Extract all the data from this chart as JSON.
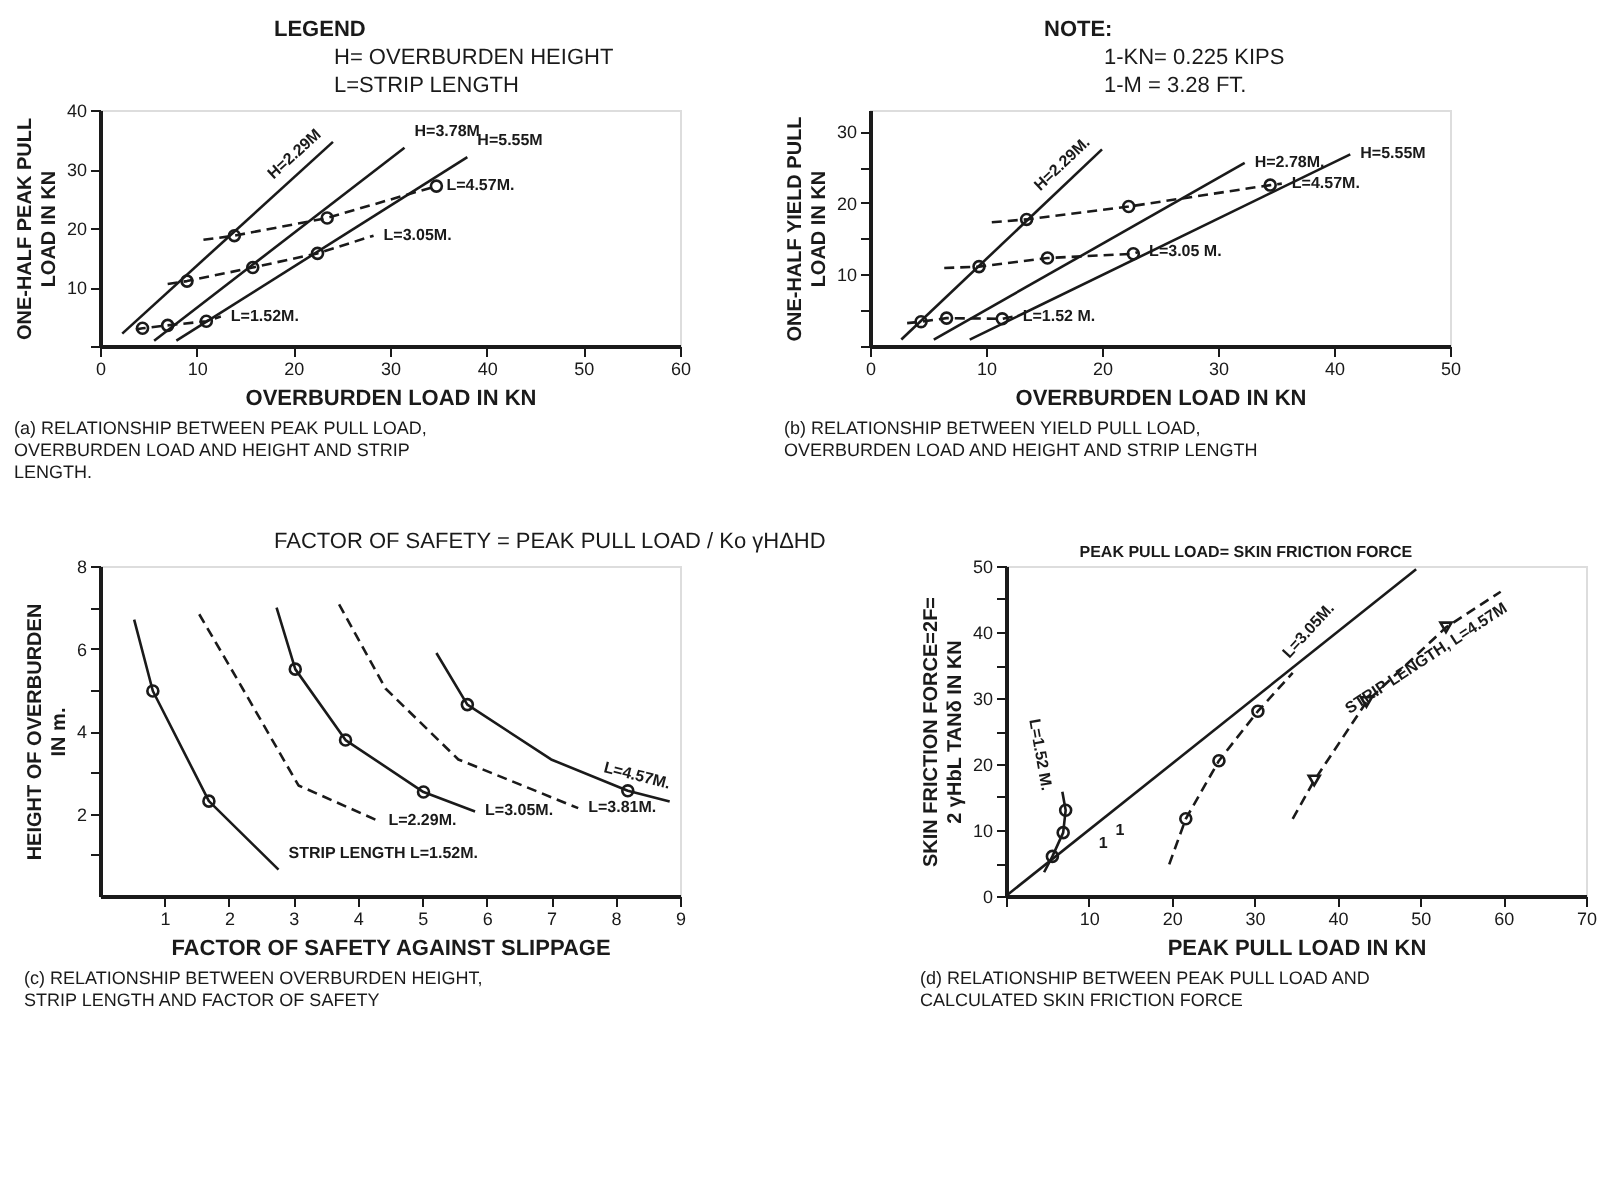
{
  "chart_data": [
    {
      "type": "line",
      "title": "(a) RELATIONSHIP BETWEEN PEAK PULL LOAD,\nOVERBURDEN  LOAD  AND HEIGHT AND STRIP\nLENGTH.",
      "xlabel": "OVERBURDEN LOAD IN KN",
      "ylabel": "ONE-HALF PEAK PULL\nLOAD IN KN",
      "xlim": [
        0,
        60
      ],
      "ylim": [
        0,
        40
      ],
      "xticks": [
        0,
        10,
        20,
        30,
        40,
        50,
        60
      ],
      "yticks": [
        {
          "value": 0,
          "label": null
        },
        10,
        20,
        30,
        40
      ],
      "annotations": [
        "LEGEND",
        "H= OVERBURDEN HEIGHT",
        "L=STRIP LENGTH"
      ],
      "series": [
        {
          "name": "H=2.29M",
          "line_style": "solid",
          "color": "#1a1a1a",
          "x": [
            2.3,
            24.1
          ],
          "values": [
            2.1,
            34.6
          ]
        },
        {
          "name": "H=3.78M",
          "line_style": "solid",
          "color": "#1a1a1a",
          "x": [
            5.6,
            31.5
          ],
          "values": [
            0.9,
            33.6
          ]
        },
        {
          "name": "H=5.55M",
          "line_style": "solid",
          "color": "#1a1a1a",
          "x": [
            7.9,
            38
          ],
          "values": [
            0.9,
            32
          ]
        },
        {
          "name": "L=1.52M.",
          "line_style": "dashed",
          "color": "#1a1a1a",
          "x": [
            3.7,
            4.4,
            7,
            11,
            12.5
          ],
          "values": [
            2.8,
            3,
            3.5,
            4.2,
            5
          ]
        },
        {
          "name": "L=3.05M.",
          "line_style": "dashed",
          "color": "#1a1a1a",
          "x": [
            7,
            9,
            15.8,
            22.5,
            28.3
          ],
          "values": [
            10.5,
            11,
            13.3,
            15.7,
            18.7
          ]
        },
        {
          "name": "L=4.57M.",
          "line_style": "dashed",
          "color": "#1a1a1a",
          "x": [
            10.7,
            13.9,
            23.5,
            34.8
          ],
          "values": [
            18,
            18.7,
            21.7,
            27.1
          ]
        },
        {
          "type": "scatter",
          "marker": "circle",
          "color": "#1a1a1a",
          "x": [
            4.4,
            7,
            11,
            9,
            15.8,
            22.5,
            13.9,
            23.5,
            34.8
          ],
          "values": [
            3,
            3.5,
            4.2,
            11,
            13.3,
            15.7,
            18.7,
            21.7,
            27.1
          ]
        }
      ]
    },
    {
      "type": "line",
      "title": "(b) RELATIONSHIP BETWEEN YIELD PULL LOAD,\nOVERBURDEN  LOAD  AND HEIGHT AND STRIP LENGTH",
      "xlabel": "OVERBURDEN LOAD IN KN",
      "ylabel": "ONE-HALF YIELD PULL\nLOAD IN KN",
      "xlim": [
        0,
        50
      ],
      "ylim": [
        0,
        33
      ],
      "xticks": [
        0,
        10,
        20,
        30,
        40,
        50
      ],
      "yticks": [
        {
          "value": 0,
          "label": null
        },
        {
          "value": 5,
          "label": null
        },
        10,
        {
          "value": 15,
          "label": null
        },
        20,
        {
          "value": 25,
          "label": null
        },
        30
      ],
      "annotations": [
        "NOTE:",
        "1-KN= 0.225  KIPS",
        "1-M = 3.28   FT."
      ],
      "series": [
        {
          "name": "H=2.29M.",
          "line_style": "solid",
          "color": "#1a1a1a",
          "x": [
            2.7,
            20
          ],
          "values": [
            0.9,
            27.5
          ]
        },
        {
          "name": "H=2.78M.",
          "line_style": "solid",
          "color": "#1a1a1a",
          "x": [
            5.5,
            32.3
          ],
          "values": [
            0.9,
            25.6
          ]
        },
        {
          "name": "H=5.55M",
          "line_style": "solid",
          "color": "#1a1a1a",
          "x": [
            8.6,
            41.4
          ],
          "values": [
            0.9,
            26.8
          ]
        },
        {
          "name": "L=1.52 M.",
          "line_style": "dashed",
          "color": "#1a1a1a",
          "x": [
            3.2,
            4.4,
            6.6,
            11.4,
            12.3
          ],
          "values": [
            3.2,
            3.4,
            3.9,
            3.8,
            4.1
          ]
        },
        {
          "name": "L=3.05 M.",
          "line_style": "dashed",
          "color": "#1a1a1a",
          "x": [
            6.4,
            9.4,
            15.3,
            22.7,
            23.2
          ],
          "values": [
            10.9,
            11.1,
            12.3,
            12.9,
            13.2
          ]
        },
        {
          "name": "L=4.57M.",
          "line_style": "dashed",
          "color": "#1a1a1a",
          "x": [
            10.5,
            13.5,
            22.3,
            34.5,
            35.5
          ],
          "values": [
            17.3,
            17.7,
            19.5,
            22.5,
            22.7
          ]
        },
        {
          "type": "scatter",
          "marker": "circle",
          "color": "#1a1a1a",
          "x": [
            4.4,
            6.6,
            11.4,
            9.4,
            15.3,
            22.7,
            13.5,
            22.3,
            34.5
          ],
          "values": [
            3.4,
            3.9,
            3.8,
            11.1,
            12.3,
            12.9,
            17.7,
            19.5,
            22.5
          ]
        }
      ]
    },
    {
      "type": "line",
      "title": "(c) RELATIONSHIP BETWEEN OVERBURDEN HEIGHT,\nSTRIP LENGTH AND FACTOR OF SAFETY",
      "xlabel": "FACTOR OF SAFETY AGAINST SLIPPAGE",
      "ylabel": "HEIGHT OF OVERBURDEN\nIN m.",
      "xlim": [
        0,
        9
      ],
      "ylim": [
        0,
        8
      ],
      "xticks": [
        1,
        2,
        3,
        4,
        5,
        6,
        7,
        8,
        9
      ],
      "yticks": [
        {
          "value": 1,
          "label": null
        },
        2,
        {
          "value": 3,
          "label": null
        },
        4,
        {
          "value": 5,
          "label": null
        },
        6,
        {
          "value": 7,
          "label": null
        },
        8
      ],
      "annotations": [
        "FACTOR OF SAFETY = PEAK PULL LOAD / Ko γHΔHD"
      ],
      "series": [
        {
          "name": "STRIP LENGTH L=1.52M.",
          "line_style": "solid",
          "color": "#1a1a1a",
          "x": [
            0.53,
            0.82,
            1.69,
            2.77
          ],
          "values": [
            6.7,
            4.97,
            2.3,
            0.64
          ]
        },
        {
          "name": "L=2.29M.",
          "line_style": "dashed",
          "color": "#1a1a1a",
          "x": [
            1.54,
            2.15,
            3.08,
            4.32
          ],
          "values": [
            6.83,
            5.2,
            2.68,
            1.82
          ]
        },
        {
          "name": "L=3.05M.",
          "line_style": "solid",
          "color": "#1a1a1a",
          "x": [
            2.74,
            3.03,
            3.81,
            5.02,
            5.82
          ],
          "values": [
            6.99,
            5.5,
            3.78,
            2.52,
            2.05
          ]
        },
        {
          "name": "L=3.81M.",
          "line_style": "dashed",
          "color": "#1a1a1a",
          "x": [
            3.71,
            4.43,
            5.56,
            7.42
          ],
          "values": [
            7.07,
            5.03,
            3.31,
            2.13
          ]
        },
        {
          "name": "L=4.57M.",
          "line_style": "solid",
          "color": "#1a1a1a",
          "x": [
            5.22,
            5.7,
            7.0,
            8.19,
            8.84
          ],
          "values": [
            5.89,
            4.64,
            3.31,
            2.55,
            2.29
          ]
        },
        {
          "type": "scatter",
          "marker": "circle",
          "color": "#1a1a1a",
          "x": [
            0.82,
            1.69,
            3.03,
            3.81,
            5.02,
            5.7,
            8.19
          ],
          "values": [
            4.97,
            2.3,
            5.5,
            3.78,
            2.52,
            4.64,
            2.55
          ]
        }
      ]
    },
    {
      "type": "line",
      "title": "(d) RELATIONSHIP BETWEEN PEAK PULL LOAD AND\nCALCULATED SKIN FRICTION FORCE",
      "xlabel": "PEAK PULL LOAD IN KN",
      "ylabel": "SKIN FRICTION FORCE=2F=\n2 γHbL TANδ  IN KN",
      "xlim": [
        0,
        70
      ],
      "ylim": [
        0,
        50
      ],
      "xticks": [
        {
          "value": 0,
          "label": null
        },
        10,
        20,
        30,
        40,
        50,
        60,
        70
      ],
      "yticks": [
        0,
        {
          "value": 5,
          "label": null
        },
        10,
        {
          "value": 15,
          "label": null
        },
        20,
        {
          "value": 25,
          "label": null
        },
        30,
        {
          "value": 35,
          "label": null
        },
        40,
        {
          "value": 45,
          "label": null
        },
        50
      ],
      "annotations": [
        {
          "text": "1",
          "x": 12,
          "y": 12
        },
        {
          "text": "1",
          "x": 10,
          "y": 10
        }
      ],
      "series": [
        {
          "name": "PEAK PULL LOAD= SKIN FRICTION FORCE",
          "line_style": "solid",
          "color": "#1a1a1a",
          "x": [
            0,
            49.5
          ],
          "values": [
            0,
            49.5
          ]
        },
        {
          "name": "L=1.52 M.",
          "line_style": "solid",
          "color": "#1a1a1a",
          "x": [
            4.6,
            5.6,
            6.9,
            7.2,
            6.8
          ],
          "values": [
            3.6,
            6,
            9.6,
            13,
            15.8
          ]
        },
        {
          "name": "L=3.05M.",
          "line_style": "dashed",
          "color": "#1a1a1a",
          "x": [
            19.7,
            21.7,
            25.7,
            30.4,
            34.6
          ],
          "values": [
            4.8,
            11.7,
            20.5,
            28,
            33.8
          ]
        },
        {
          "name": "STRIP LENGTH, L=4.57M",
          "line_style": "dashed",
          "color": "#1a1a1a",
          "x": [
            34.6,
            37.2,
            43.5,
            53.1,
            59.7
          ],
          "values": [
            11.7,
            17.5,
            29.4,
            40.7,
            46.1
          ]
        },
        {
          "type": "scatter",
          "marker": "circle",
          "color": "#1a1a1a",
          "x": [
            5.6,
            6.9,
            7.2,
            21.7,
            25.7,
            30.4
          ],
          "values": [
            6,
            9.6,
            13,
            11.7,
            20.5,
            28
          ]
        },
        {
          "type": "scatter",
          "marker": "triangle",
          "color": "#1a1a1a",
          "x": [
            37.2,
            43.5,
            53.1
          ],
          "values": [
            17.5,
            29.4,
            40.7
          ]
        }
      ]
    }
  ]
}
